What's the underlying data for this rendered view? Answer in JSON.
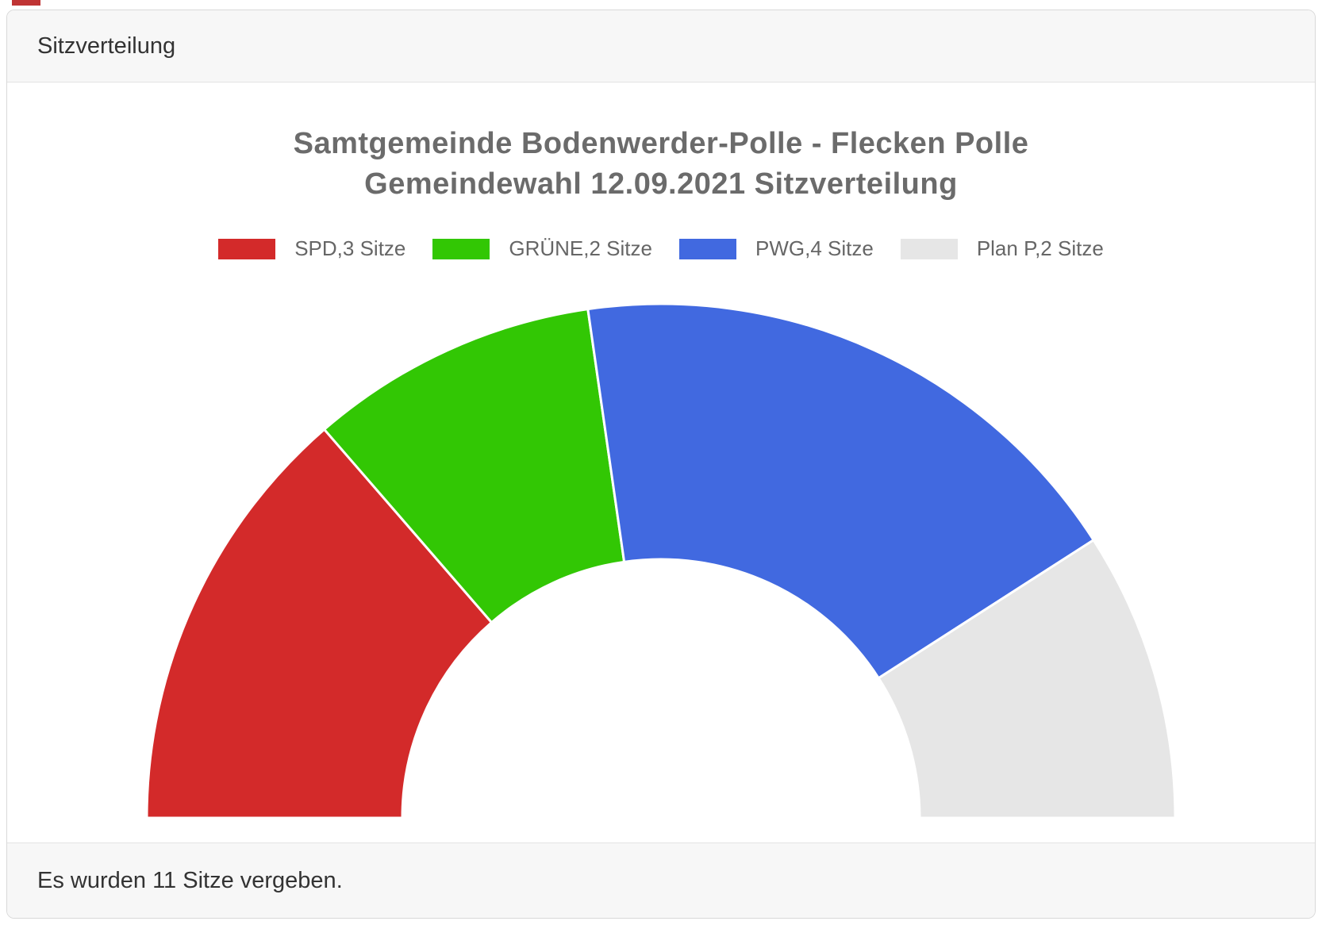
{
  "card": {
    "header": {
      "title": "Sitzverteilung"
    },
    "footer": {
      "text": "Es wurden 11 Sitze vergeben."
    }
  },
  "chart_data": {
    "type": "pie",
    "variant": "half-donut",
    "title_lines": [
      "Samtgemeinde Bodenwerder-Polle - Flecken Polle",
      "Gemeindewahl 12.09.2021 Sitzverteilung"
    ],
    "title_color": "#6b6b6b",
    "total_seats": 11,
    "series": [
      {
        "name": "SPD",
        "seats": 3,
        "label": "SPD,3 Sitze",
        "color": "#d32a2a"
      },
      {
        "name": "GRÜNE",
        "seats": 2,
        "label": "GRÜNE,2 Sitze",
        "color": "#32c704"
      },
      {
        "name": "PWG",
        "seats": 4,
        "label": "PWG,4 Sitze",
        "color": "#4169e0"
      },
      {
        "name": "Plan P",
        "seats": 2,
        "label": "Plan P,2 Sitze",
        "color": "#e6e6e6"
      }
    ],
    "legend_position": "top",
    "start_angle_deg": 180,
    "end_angle_deg": 0,
    "inner_radius_ratio": 0.503,
    "separator_color": "#ffffff"
  }
}
